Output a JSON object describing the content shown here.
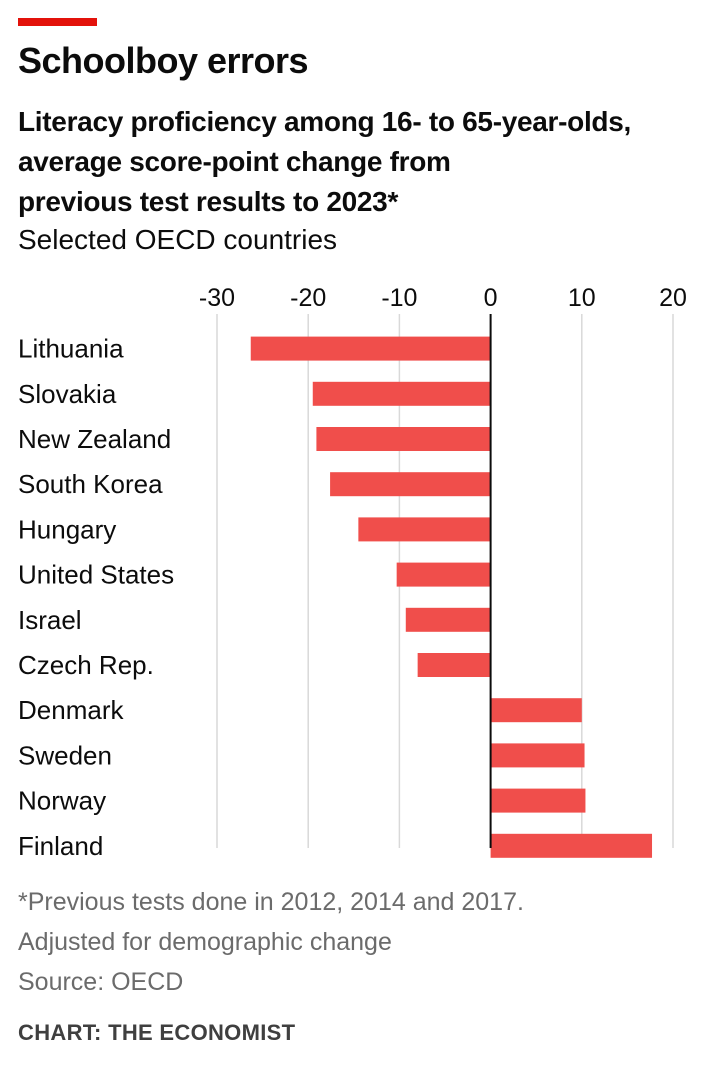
{
  "header": {
    "headline": "Schoolboy errors",
    "subtitle_lines": [
      "Literacy proficiency among 16- to 65-year-olds,",
      "average score-point change from",
      "previous test results to 2023*"
    ],
    "scope": "Selected OECD countries"
  },
  "footer": {
    "footnote": "*Previous tests done in 2012, 2014 and 2017.",
    "adjustment": "Adjusted for demographic change",
    "source": "Source: OECD",
    "credit": "CHART: THE ECONOMIST"
  },
  "colors": {
    "bar": "#f04e4b",
    "brand_red": "#e3120b",
    "gridline": "#d9d9d9",
    "zero_line": "#0c0c0c"
  },
  "chart_data": {
    "type": "bar",
    "orientation": "horizontal",
    "title": "Literacy proficiency among 16- to 65-year-olds, average score-point change from previous test results to 2023*",
    "xlabel": "",
    "ylabel": "",
    "xlim": [
      -30,
      20
    ],
    "xticks": [
      -30,
      -20,
      -10,
      0,
      10,
      20
    ],
    "xtick_labels": [
      "-30",
      "-20",
      "-10",
      "0",
      "10",
      "20"
    ],
    "axis_position": "top",
    "grid": true,
    "categories": [
      "Lithuania",
      "Slovakia",
      "New Zealand",
      "South Korea",
      "Hungary",
      "United States",
      "Israel",
      "Czech Rep.",
      "Denmark",
      "Sweden",
      "Norway",
      "Finland"
    ],
    "values": [
      -26.3,
      -19.5,
      -19.1,
      -17.6,
      -14.5,
      -10.3,
      -9.3,
      -8.0,
      10.0,
      10.3,
      10.4,
      17.7
    ]
  }
}
